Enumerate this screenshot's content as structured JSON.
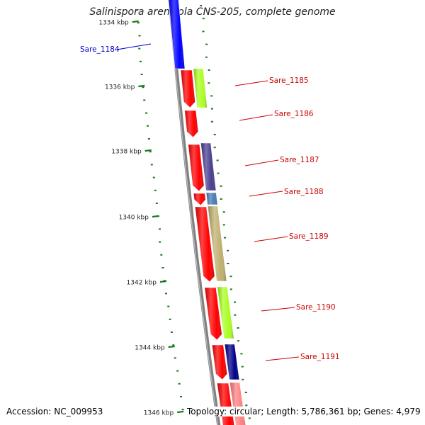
{
  "title": "Salinispora arenicola CNS-205, complete genome",
  "accession": "Accession: NC_009953",
  "summary": "Topology: circular; Length: 5,786,361 bp; Genes: 4,979",
  "colors": {
    "backbone": "#808080",
    "tick": "#1a7a1a",
    "dot": "#1a7a1a",
    "red_label": "#cc0000",
    "blue_label": "#0000cc"
  },
  "ticks": [
    {
      "label": "1334 kbp"
    },
    {
      "label": "1336 kbp"
    },
    {
      "label": "1338 kbp"
    },
    {
      "label": "1340 kbp"
    },
    {
      "label": "1342 kbp"
    },
    {
      "label": "1344 kbp"
    },
    {
      "label": "1346 kbp"
    }
  ],
  "genes": [
    {
      "id": "Sare_1184",
      "strand": "outer",
      "color": "#0000ff",
      "label_color": "blue_label"
    },
    {
      "id": "Sare_1185",
      "strand": "inner",
      "color": "#ff0000",
      "label_color": "red_label"
    },
    {
      "id": "Sare_1185b",
      "strand": "outer2",
      "color": "#aaff22"
    },
    {
      "id": "Sare_1186",
      "strand": "inner",
      "color": "#ff0000",
      "label_color": "red_label"
    },
    {
      "id": "Sare_1187",
      "strand": "inner",
      "color": "#ff0000",
      "label_color": "red_label"
    },
    {
      "id": "Sare_1187b",
      "strand": "outer2",
      "color": "#4a3f8f"
    },
    {
      "id": "Sare_1188",
      "strand": "inner",
      "color": "#ff0000",
      "label_color": "red_label"
    },
    {
      "id": "Sare_1188b",
      "strand": "outer2",
      "color": "#4a7fb8"
    },
    {
      "id": "Sare_1189",
      "strand": "inner",
      "color": "#ff0000",
      "label_color": "red_label"
    },
    {
      "id": "Sare_1189b",
      "strand": "outer2",
      "color": "#c0b070"
    },
    {
      "id": "Sare_1190",
      "strand": "inner",
      "color": "#ff0000",
      "label_color": "red_label"
    },
    {
      "id": "Sare_1190b",
      "strand": "outer2",
      "color": "#aaff22"
    },
    {
      "id": "Sare_1191",
      "strand": "inner",
      "color": "#ff0000",
      "label_color": "red_label"
    },
    {
      "id": "Sare_1191b",
      "strand": "outer2",
      "color": "#000088"
    },
    {
      "id": "Sare_1192",
      "strand": "inner",
      "color": "#ff0000"
    },
    {
      "id": "Sare_1192b",
      "strand": "outer2",
      "color": "#ff8080"
    }
  ],
  "labels": [
    {
      "text": "Sare_1184",
      "gene": "Sare_1184"
    },
    {
      "text": "Sare_1185",
      "gene": "Sare_1185"
    },
    {
      "text": "Sare_1186",
      "gene": "Sare_1186"
    },
    {
      "text": "Sare_1187",
      "gene": "Sare_1187"
    },
    {
      "text": "Sare_1188",
      "gene": "Sare_1188"
    },
    {
      "text": "Sare_1189",
      "gene": "Sare_1189"
    },
    {
      "text": "Sare_1190",
      "gene": "Sare_1190"
    },
    {
      "text": "Sare_1191",
      "gene": "Sare_1191"
    }
  ]
}
